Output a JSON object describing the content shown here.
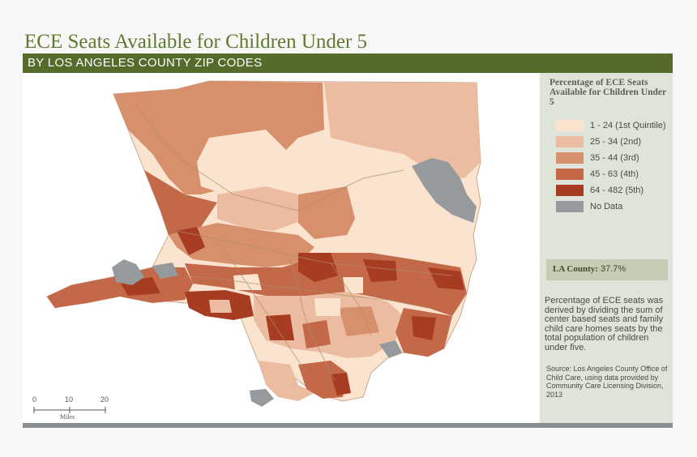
{
  "title": "ECE Seats Available for Children Under 5",
  "subtitle": "BY LOS ANGELES COUNTY ZIP CODES",
  "legend": {
    "title": "Percentage of ECE Seats Available for Children Under 5",
    "items": [
      {
        "label": "1 - 24 (1st Quintile)",
        "color": "#fbe4cf"
      },
      {
        "label": "25 - 34 (2nd)",
        "color": "#ecbca0"
      },
      {
        "label": "35 - 44 (3rd)",
        "color": "#d8906c"
      },
      {
        "label": "45 - 63 (4th)",
        "color": "#c36848"
      },
      {
        "label": "64 - 482 (5th)",
        "color": "#a83c22"
      },
      {
        "label": "No Data",
        "color": "#969a9d"
      }
    ]
  },
  "county_summary": {
    "label": "LA County:",
    "value": "37.7%"
  },
  "description": "Percentage of ECE seats was derived by dividing the sum of center based seats and family child care homes seats by the total population of children under five.",
  "source": "Source: Los Angeles County Office of Child Care, using data provided by Community Care Licensing Division, 2013",
  "scale_bar": {
    "ticks": [
      "0",
      "10",
      "20"
    ],
    "unit": "Miles"
  }
}
